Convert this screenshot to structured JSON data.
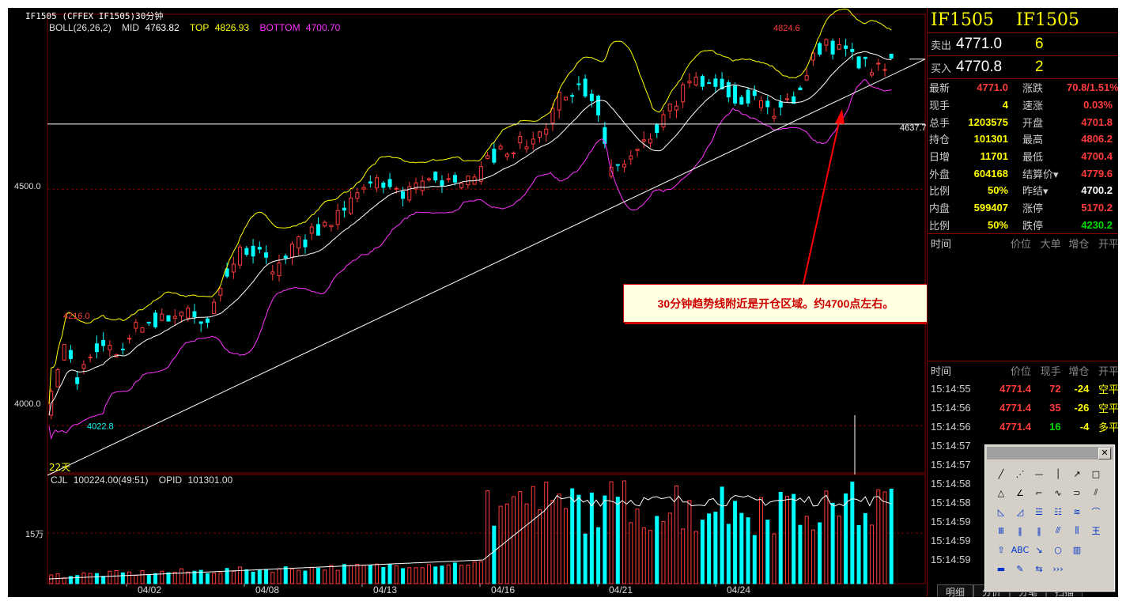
{
  "window_title": "IF1505  (CFFEX IF1505)30分钟",
  "indicator": {
    "name": "BOLL(26,26,2)",
    "mid_label": "MID",
    "mid": "4763.82",
    "top_label": "TOP",
    "top": "4826.93",
    "bottom_label": "BOTTOM",
    "bottom": "4700.70"
  },
  "volume_indicator": {
    "name": "CJL",
    "value": "100224.00(49:51)",
    "opid_label": "OPID",
    "opid": "101301.00"
  },
  "period_label": "22天",
  "annotation_text": "30分钟趋势线附近是开仓区域。约4700点左右。",
  "colors": {
    "up": "#ff3b3b",
    "down": "#00ffff",
    "boll_top": "#ffff00",
    "boll_mid": "#ffffff",
    "boll_bottom": "#ff33ff",
    "grid": "#800000"
  },
  "chart_data": [
    {
      "type": "candlestick",
      "title": "",
      "x": [
        "04/02",
        "04/08",
        "04/13",
        "04/16",
        "04/21",
        "04/24"
      ],
      "ylim": [
        3900,
        4870
      ],
      "y_ticks": [
        "4500.0",
        "4000.0"
      ],
      "price_labels": {
        "high_label": "4824.6",
        "low_label": "4022.8",
        "local_high_label": "4216.0",
        "hline_label": "4637.7"
      },
      "horizontal_line": 4637.7,
      "boll_current": {
        "top": 4826.93,
        "mid": 4763.82,
        "bottom": 4700.7
      },
      "trendline": {
        "start": 3895,
        "end": 4775
      }
    },
    {
      "type": "bar",
      "title": "",
      "y_ticks": [
        "15万"
      ],
      "series": [
        {
          "name": "CJL",
          "last": 100224.0
        },
        {
          "name": "OPID",
          "last": 101301.0
        }
      ]
    }
  ],
  "quote": {
    "title_left": "IF1505",
    "title_right": "IF1505",
    "ask": {
      "label": "卖出",
      "price": "4771.0",
      "volume": "6"
    },
    "bid": {
      "label": "买入",
      "price": "4770.8",
      "volume": "2"
    },
    "rows": [
      {
        "l1": "最新",
        "v1": "4771.0",
        "c1": "#ff3b3b",
        "l2": "涨跌",
        "v2": "70.8/1.51%",
        "c2": "#ff3b3b"
      },
      {
        "l1": "现手",
        "v1": "4",
        "c1": "#ff0",
        "l2": "速涨",
        "v2": "0.03%",
        "c2": "#ff3b3b"
      },
      {
        "l1": "总手",
        "v1": "1203575",
        "c1": "#ff0",
        "l2": "开盘",
        "v2": "4701.8",
        "c2": "#ff3b3b"
      },
      {
        "l1": "持仓",
        "v1": "101301",
        "c1": "#ff0",
        "l2": "最高",
        "v2": "4806.2",
        "c2": "#ff3b3b"
      },
      {
        "l1": "日增",
        "v1": "11701",
        "c1": "#ff0",
        "l2": "最低",
        "v2": "4700.4",
        "c2": "#ff3b3b"
      },
      {
        "l1": "外盘",
        "v1": "604168",
        "c1": "#ff0",
        "l2": "结算价▾",
        "v2": "4779.6",
        "c2": "#ff3b3b"
      },
      {
        "l1": "比例",
        "v1": "50%",
        "c1": "#ff0",
        "l2": "昨结▾",
        "v2": "4700.2",
        "c2": "#fff"
      },
      {
        "l1": "内盘",
        "v1": "599407",
        "c1": "#ff0",
        "l2": "涨停",
        "v2": "5170.2",
        "c2": "#ff3b3b"
      },
      {
        "l1": "比例",
        "v1": "50%",
        "c1": "#ff0",
        "l2": "跌停",
        "v2": "4230.2",
        "c2": "#00dd00"
      }
    ],
    "big_order_header": {
      "h1": "时间",
      "h2": "价位",
      "h3": "大单",
      "h4": "增仓",
      "h5": "开平"
    },
    "trades_header": {
      "h1": "时间",
      "h2": "价位",
      "h3": "现手",
      "h4": "增仓",
      "h5": "开平"
    },
    "trades": [
      {
        "time": "15:14:55",
        "price": "4771.4",
        "vol": "72",
        "vol_color": "#ff3b3b",
        "chg": "-24",
        "oc": "空平"
      },
      {
        "time": "15:14:56",
        "price": "4771.4",
        "vol": "35",
        "vol_color": "#ff3b3b",
        "chg": "-26",
        "oc": "空平"
      },
      {
        "time": "15:14:56",
        "price": "4771.4",
        "vol": "16",
        "vol_color": "#00dd00",
        "chg": "-4",
        "oc": "多平"
      },
      {
        "time": "15:14:57",
        "price": "",
        "vol": "",
        "vol_color": "#fff",
        "chg": "",
        "oc": ""
      },
      {
        "time": "15:14:57",
        "price": "",
        "vol": "",
        "vol_color": "#fff",
        "chg": "",
        "oc": ""
      },
      {
        "time": "15:14:58",
        "price": "",
        "vol": "",
        "vol_color": "#fff",
        "chg": "",
        "oc": ""
      },
      {
        "time": "15:14:58",
        "price": "",
        "vol": "",
        "vol_color": "#fff",
        "chg": "",
        "oc": ""
      },
      {
        "time": "15:14:59",
        "price": "",
        "vol": "",
        "vol_color": "#fff",
        "chg": "",
        "oc": ""
      },
      {
        "time": "15:14:59",
        "price": "",
        "vol": "",
        "vol_color": "#fff",
        "chg": "",
        "oc": ""
      },
      {
        "time": "15:14:59",
        "price": "",
        "vol": "",
        "vol_color": "#fff",
        "chg": "",
        "oc": ""
      }
    ],
    "tabs": [
      "明细",
      "分价",
      "分笔",
      "扫描"
    ]
  },
  "palette": {
    "close_label": "✕",
    "tools": [
      "╱",
      "⋰",
      "—",
      "│",
      "↗",
      "□",
      "△",
      "∠",
      "⌐",
      "∿",
      "⊃",
      "⫽",
      "◺",
      "◿",
      "☰",
      "☷",
      "≋",
      "⌒",
      "Ⅲ",
      "‖",
      "‖",
      "⫻",
      "⫼",
      "王",
      "⇧",
      "ABC",
      "↘",
      "○",
      "▥",
      "",
      "▬",
      "✎",
      "⇆",
      "›››"
    ]
  }
}
